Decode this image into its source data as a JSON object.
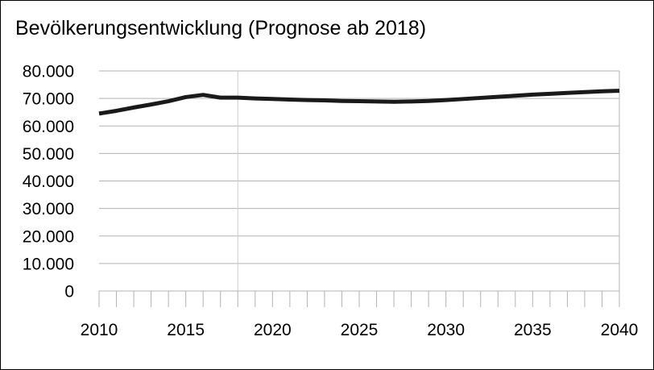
{
  "chart_data": {
    "type": "line",
    "title": "Bevölkerungsentwicklung (Prognose ab 2018)",
    "xlabel": "",
    "ylabel": "",
    "xlim": [
      2010,
      2040
    ],
    "ylim": [
      0,
      80000
    ],
    "x_ticks": [
      2010,
      2015,
      2020,
      2025,
      2030,
      2035,
      2040
    ],
    "x_tick_labels": [
      "2010",
      "2015",
      "2020",
      "2025",
      "2030",
      "2035",
      "2040"
    ],
    "y_ticks": [
      0,
      10000,
      20000,
      30000,
      40000,
      50000,
      60000,
      70000,
      80000
    ],
    "y_tick_labels": [
      "0",
      "10.000",
      "20.000",
      "30.000",
      "40.000",
      "50.000",
      "60.000",
      "70.000",
      "80.000"
    ],
    "forecast_start": 2018,
    "grid": "horizontal",
    "series": [
      {
        "color": "#1a1a1a",
        "x": [
          2010,
          2011,
          2012,
          2013,
          2014,
          2015,
          2016,
          2017,
          2018,
          2019,
          2020,
          2021,
          2022,
          2023,
          2024,
          2025,
          2026,
          2027,
          2028,
          2029,
          2030,
          2031,
          2032,
          2033,
          2034,
          2035,
          2036,
          2037,
          2038,
          2039,
          2040
        ],
        "values": [
          64500,
          65500,
          66700,
          67800,
          69000,
          70500,
          71300,
          70300,
          70300,
          70000,
          69800,
          69600,
          69400,
          69300,
          69100,
          69000,
          68900,
          68800,
          68900,
          69100,
          69400,
          69800,
          70200,
          70600,
          71000,
          71400,
          71700,
          72000,
          72300,
          72600,
          72800
        ]
      }
    ]
  }
}
